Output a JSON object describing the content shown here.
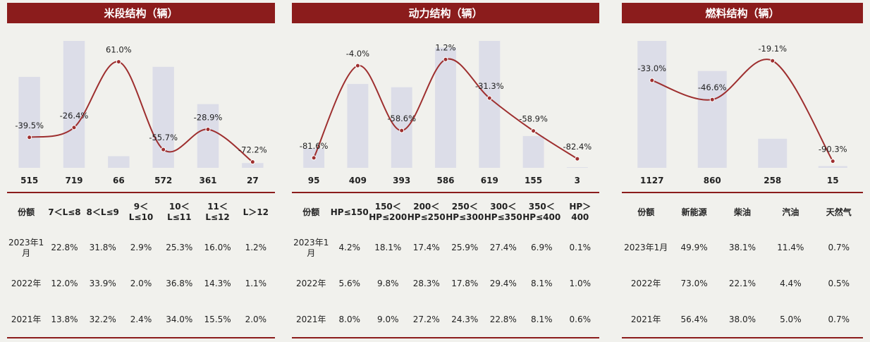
{
  "panels": [
    {
      "title": "米段结构（辆）",
      "headers": [
        "份额",
        "7＜L≤8",
        "8＜L≤9",
        "9＜L≤10",
        "10＜L≤11",
        "11＜L≤12",
        "L＞12"
      ],
      "rows": [
        {
          "label": "2023年1月",
          "values": [
            "22.8%",
            "31.8%",
            "2.9%",
            "25.3%",
            "16.0%",
            "1.2%"
          ]
        },
        {
          "label": "2022年",
          "values": [
            "12.0%",
            "33.9%",
            "2.0%",
            "36.8%",
            "14.3%",
            "1.1%"
          ]
        },
        {
          "label": "2021年",
          "values": [
            "13.8%",
            "32.2%",
            "2.4%",
            "34.0%",
            "15.5%",
            "2.0%"
          ]
        }
      ]
    },
    {
      "title": "动力结构（辆）",
      "headers": [
        "份额",
        "HP≤150",
        "150＜HP≤200",
        "200＜HP≤250",
        "250＜HP≤300",
        "300＜HP≤350",
        "350＜HP≤400",
        "HP＞400"
      ],
      "rows": [
        {
          "label": "2023年1月",
          "values": [
            "4.2%",
            "18.1%",
            "17.4%",
            "25.9%",
            "27.4%",
            "6.9%",
            "0.1%"
          ]
        },
        {
          "label": "2022年",
          "values": [
            "5.6%",
            "9.8%",
            "28.3%",
            "17.8%",
            "29.4%",
            "8.1%",
            "1.0%"
          ]
        },
        {
          "label": "2021年",
          "values": [
            "8.0%",
            "9.0%",
            "27.2%",
            "24.3%",
            "22.8%",
            "8.1%",
            "0.6%"
          ]
        }
      ]
    },
    {
      "title": "燃料结构（辆）",
      "headers": [
        "份额",
        "新能源",
        "柴油",
        "汽油",
        "天然气"
      ],
      "rows": [
        {
          "label": "2023年1月",
          "values": [
            "49.9%",
            "38.1%",
            "11.4%",
            "0.7%"
          ]
        },
        {
          "label": "2022年",
          "values": [
            "73.0%",
            "22.1%",
            "4.4%",
            "0.5%"
          ]
        },
        {
          "label": "2021年",
          "values": [
            "56.4%",
            "38.0%",
            "5.0%",
            "0.7%"
          ]
        }
      ]
    }
  ],
  "chart_data": [
    {
      "type": "bar",
      "title": "米段结构（辆）",
      "categories": [
        "7＜L≤8",
        "8＜L≤9",
        "9＜L≤10",
        "10＜L≤11",
        "11＜L≤12",
        "L＞12"
      ],
      "values": [
        515,
        719,
        66,
        572,
        361,
        27
      ],
      "value_labels": [
        "515",
        "719",
        "66",
        "572",
        "361",
        "27"
      ],
      "line_values": [
        -39.5,
        -26.4,
        61.0,
        -55.7,
        -28.9,
        -72.2
      ],
      "line_labels": [
        "-39.5%",
        "-26.4%",
        "61.0%",
        "-55.7%",
        "-28.9%",
        "-72.2%"
      ],
      "line_range": [
        -80,
        70
      ],
      "bar_color": "#dcdde8",
      "line_color": "#9e2f2f"
    },
    {
      "type": "bar",
      "title": "动力结构（辆）",
      "categories": [
        "HP≤150",
        "150＜HP≤200",
        "200＜HP≤250",
        "250＜HP≤300",
        "300＜HP≤350",
        "350＜HP≤400",
        "HP＞400"
      ],
      "values": [
        95,
        409,
        393,
        586,
        619,
        155,
        3
      ],
      "value_labels": [
        "95",
        "409",
        "393",
        "586",
        "619",
        "155",
        "3"
      ],
      "line_values": [
        -81.6,
        -4.0,
        -58.6,
        1.2,
        -31.3,
        -58.9,
        -82.4
      ],
      "line_labels": [
        "-81.6%",
        "-4.0%",
        "-58.6%",
        "1.2%",
        "-31.3%",
        "-58.9%",
        "-82.4%"
      ],
      "line_range": [
        -90,
        5
      ],
      "bar_color": "#dcdde8",
      "line_color": "#9e2f2f"
    },
    {
      "type": "bar",
      "title": "燃料结构（辆）",
      "categories": [
        "新能源",
        "柴油",
        "汽油",
        "天然气"
      ],
      "values": [
        1127,
        860,
        258,
        15
      ],
      "value_labels": [
        "1127",
        "860",
        "258",
        "15"
      ],
      "line_values": [
        -33.0,
        -46.6,
        -19.1,
        -90.3
      ],
      "line_labels": [
        "-33.0%",
        "-46.6%",
        "-19.1%",
        "-90.3%"
      ],
      "line_range": [
        -95,
        -15
      ],
      "bar_color": "#dcdde8",
      "line_color": "#9e2f2f"
    }
  ]
}
